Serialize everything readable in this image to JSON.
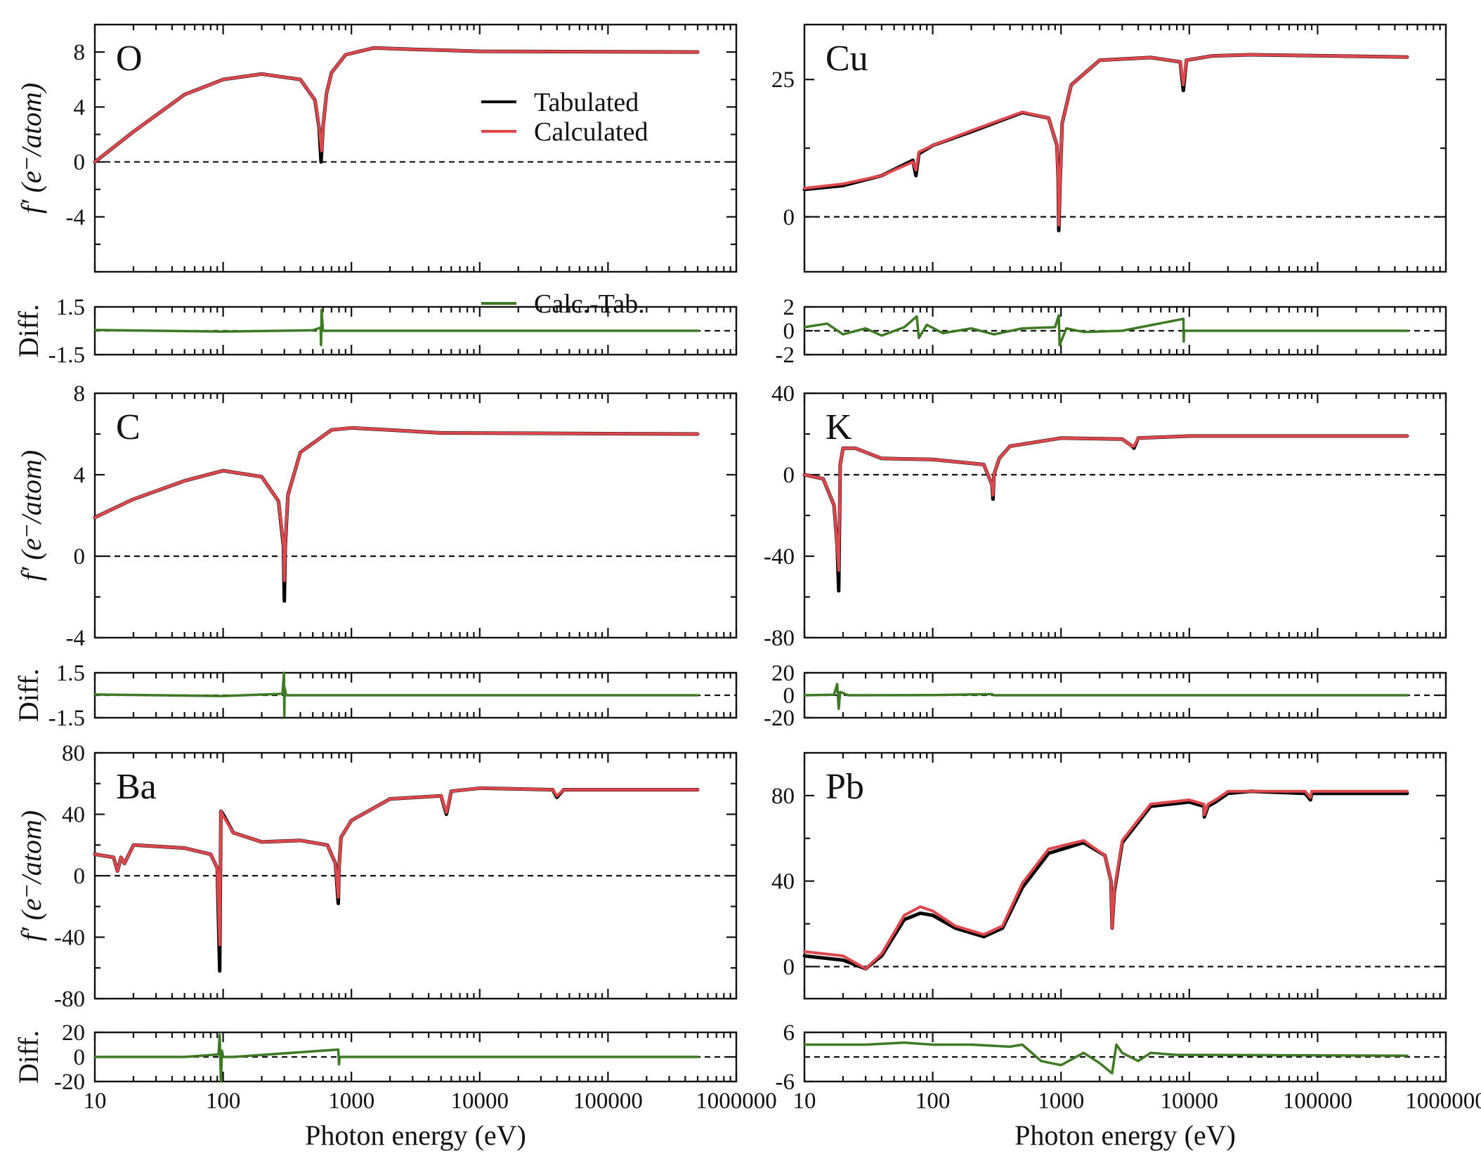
{
  "figure": {
    "x_axis_label": "Photon energy (eV)",
    "x_tick_labels": [
      "10",
      "100",
      "1000",
      "10000",
      "100000",
      "1000000"
    ],
    "y_axis_label_main": "f′ (e⁻/atom)",
    "y_axis_label_diff": "Diff.",
    "legend": {
      "tabulated": "Tabulated",
      "calculated": "Calculated",
      "difference": "Calc.-Tab."
    },
    "colors": {
      "tabulated": "#000000",
      "calculated": "#e0474c",
      "difference": "#3d7a23"
    }
  },
  "chart_data": [
    {
      "type": "line",
      "element": "O",
      "xscale": "log",
      "xlim": [
        10,
        1000000
      ],
      "ylim": [
        -8,
        10
      ],
      "yticks": [
        -4,
        0,
        4,
        8
      ],
      "diff_ylim": [
        -1.5,
        1.5
      ],
      "diff_ticks": [
        -1.5,
        1.5
      ],
      "xlabel": "",
      "ylabel": "f′ (e⁻/atom)",
      "series": [
        {
          "name": "Tabulated",
          "x": [
            10,
            20,
            50,
            100,
            200,
            400,
            520,
            560,
            580,
            600,
            640,
            700,
            900,
            1500,
            3000,
            10000,
            500000
          ],
          "y": [
            0,
            2.2,
            4.9,
            6.0,
            6.4,
            6.0,
            4.5,
            2.5,
            0,
            2.5,
            5.0,
            6.5,
            7.8,
            8.3,
            8.2,
            8.05,
            8.0
          ]
        },
        {
          "name": "Calculated",
          "x": [
            10,
            20,
            50,
            100,
            200,
            400,
            520,
            560,
            585,
            600,
            640,
            700,
            900,
            1500,
            3000,
            10000,
            500000
          ],
          "y": [
            0,
            2.2,
            4.9,
            6.0,
            6.4,
            6.0,
            4.5,
            2.6,
            0.8,
            2.5,
            5.0,
            6.5,
            7.8,
            8.3,
            8.2,
            8.05,
            8.0
          ]
        },
        {
          "name": "Calc.-Tab.",
          "x": [
            10,
            100,
            500,
            575,
            580,
            585,
            600,
            1000,
            10000,
            500000
          ],
          "y": [
            0.05,
            -0.05,
            0.03,
            0.2,
            -0.9,
            1.3,
            0.0,
            0.0,
            0.0,
            0.0
          ]
        }
      ]
    },
    {
      "type": "line",
      "element": "Cu",
      "xscale": "log",
      "xlim": [
        10,
        1000000
      ],
      "ylim": [
        -10,
        35
      ],
      "yticks": [
        0,
        25
      ],
      "diff_ylim": [
        -2,
        2
      ],
      "diff_ticks": [
        -2,
        0,
        2
      ],
      "series": [
        {
          "name": "Tabulated",
          "x": [
            10,
            20,
            40,
            70,
            74,
            78,
            100,
            200,
            500,
            800,
            930,
            950,
            960,
            980,
            1020,
            1200,
            2000,
            5000,
            8500,
            8980,
            9500,
            15000,
            30000,
            500000
          ],
          "y": [
            5,
            5.7,
            7.5,
            10.3,
            7.5,
            11.5,
            13,
            15.5,
            19,
            18,
            13,
            7,
            -2.5,
            5,
            17,
            24,
            28.5,
            29,
            28.2,
            23,
            28.5,
            29.3,
            29.5,
            29.1
          ]
        },
        {
          "name": "Calculated",
          "x": [
            10,
            20,
            40,
            70,
            74,
            78,
            100,
            200,
            500,
            800,
            930,
            950,
            960,
            980,
            1020,
            1200,
            2000,
            5000,
            8500,
            8980,
            9500,
            15000,
            30000,
            500000
          ],
          "y": [
            5.2,
            6,
            7.5,
            10,
            8.5,
            11.8,
            13,
            15.7,
            19.1,
            18,
            13,
            7,
            -1.5,
            5,
            17,
            24,
            28.5,
            29,
            28.2,
            24,
            28.5,
            29.3,
            29.5,
            29.1
          ]
        },
        {
          "name": "Calc.-Tab.",
          "x": [
            10,
            15,
            20,
            30,
            40,
            60,
            75,
            78,
            90,
            120,
            200,
            300,
            500,
            900,
            960,
            975,
            1100,
            1500,
            3000,
            9000,
            9050,
            9100,
            20000,
            500000
          ],
          "y": [
            0.3,
            0.6,
            -0.3,
            0.2,
            -0.4,
            0.3,
            1.2,
            -0.6,
            0.5,
            -0.2,
            0.2,
            -0.3,
            0.2,
            0.3,
            1.3,
            -1.2,
            0.2,
            -0.1,
            0.0,
            1.0,
            -0.9,
            0.0,
            0.0,
            0.0
          ]
        }
      ]
    },
    {
      "type": "line",
      "element": "C",
      "xscale": "log",
      "xlim": [
        10,
        1000000
      ],
      "ylim": [
        -4,
        8
      ],
      "yticks": [
        -4,
        0,
        4,
        8
      ],
      "diff_ylim": [
        -1.5,
        1.5
      ],
      "diff_ticks": [
        -1.5,
        1.5
      ],
      "series": [
        {
          "name": "Tabulated",
          "x": [
            10,
            20,
            50,
            100,
            200,
            270,
            295,
            300,
            305,
            320,
            400,
            700,
            1000,
            2000,
            5000,
            500000
          ],
          "y": [
            1.9,
            2.8,
            3.7,
            4.2,
            3.9,
            2.7,
            0.5,
            -2.2,
            0.5,
            3.0,
            5.1,
            6.2,
            6.3,
            6.2,
            6.05,
            6.0
          ]
        },
        {
          "name": "Calculated",
          "x": [
            10,
            20,
            50,
            100,
            200,
            270,
            295,
            300,
            305,
            320,
            400,
            700,
            1000,
            2000,
            5000,
            500000
          ],
          "y": [
            1.9,
            2.8,
            3.7,
            4.2,
            3.9,
            2.7,
            0.6,
            -1.2,
            0.6,
            3.0,
            5.1,
            6.2,
            6.3,
            6.2,
            6.05,
            6.0
          ]
        },
        {
          "name": "Calc.-Tab.",
          "x": [
            10,
            100,
            290,
            298,
            300,
            302,
            310,
            1000,
            500000
          ],
          "y": [
            0.05,
            -0.05,
            0.1,
            1.5,
            -1.4,
            0.5,
            0.0,
            0.0,
            0.0
          ]
        }
      ]
    },
    {
      "type": "line",
      "element": "K",
      "xscale": "log",
      "xlim": [
        10,
        1000000
      ],
      "ylim": [
        -80,
        40
      ],
      "yticks": [
        -80,
        -40,
        0,
        40
      ],
      "diff_ylim": [
        -20,
        20
      ],
      "diff_ticks": [
        -20,
        0,
        20
      ],
      "series": [
        {
          "name": "Tabulated",
          "x": [
            10,
            14,
            17,
            18,
            18.5,
            19,
            20,
            25,
            40,
            100,
            250,
            290,
            295,
            300,
            330,
            400,
            1000,
            3000,
            3600,
            3700,
            4000,
            10000,
            500000
          ],
          "y": [
            0,
            -2,
            -15,
            -35,
            -57,
            5,
            13,
            13,
            8,
            7.5,
            5,
            -5,
            -12,
            0,
            8,
            14,
            18,
            17.5,
            14,
            13,
            18,
            19,
            19
          ]
        },
        {
          "name": "Calculated",
          "x": [
            10,
            14,
            17,
            18,
            18.5,
            19,
            20,
            25,
            40,
            100,
            250,
            290,
            295,
            300,
            330,
            400,
            1000,
            3000,
            3600,
            3700,
            4000,
            10000,
            500000
          ],
          "y": [
            0,
            -2,
            -15,
            -35,
            -47,
            5,
            13,
            13,
            8,
            7.5,
            5,
            -5,
            -10,
            0,
            8,
            14,
            18,
            17.5,
            14,
            14,
            18,
            19,
            19
          ]
        },
        {
          "name": "Calc.-Tab.",
          "x": [
            10,
            17,
            18,
            18.5,
            19,
            22,
            100,
            290,
            300,
            1000,
            500000
          ],
          "y": [
            0,
            0.5,
            10,
            -12,
            3,
            0,
            0.2,
            1,
            0,
            0,
            0
          ]
        }
      ]
    },
    {
      "type": "line",
      "element": "Ba",
      "xscale": "log",
      "xlim": [
        10,
        1000000
      ],
      "ylim": [
        -80,
        80
      ],
      "yticks": [
        -80,
        -40,
        0,
        40,
        80
      ],
      "diff_ylim": [
        -20,
        20
      ],
      "diff_ticks": [
        -20,
        0,
        20
      ],
      "series": [
        {
          "name": "Tabulated",
          "x": [
            10,
            14,
            15,
            16,
            17,
            20,
            50,
            80,
            90,
            94,
            96,
            100,
            120,
            200,
            400,
            650,
            750,
            790,
            800,
            830,
            1000,
            2000,
            5000,
            5500,
            6000,
            10000,
            37000,
            40000,
            45000,
            500000
          ],
          "y": [
            14,
            12,
            3,
            12,
            8,
            20,
            18,
            14,
            5,
            -62,
            42,
            40,
            28,
            22,
            23,
            20,
            8,
            -18,
            5,
            25,
            36,
            50,
            52,
            40,
            55,
            57,
            56,
            51,
            56,
            56
          ]
        },
        {
          "name": "Calculated",
          "x": [
            10,
            14,
            15,
            16,
            17,
            20,
            50,
            80,
            90,
            94,
            96,
            100,
            120,
            200,
            400,
            650,
            750,
            790,
            800,
            830,
            1000,
            2000,
            5000,
            5500,
            6000,
            10000,
            37000,
            40000,
            45000,
            500000
          ],
          "y": [
            14,
            12,
            3,
            12,
            8,
            20,
            18,
            14,
            5,
            -45,
            42,
            39,
            28,
            22,
            23,
            20,
            8,
            -14,
            5,
            25,
            36,
            50,
            52,
            41,
            55,
            57,
            56,
            52,
            56,
            56
          ]
        },
        {
          "name": "Calc.-Tab.",
          "x": [
            10,
            50,
            92,
            94,
            96,
            98,
            100,
            120,
            790,
            800,
            810,
            1000,
            500000
          ],
          "y": [
            0,
            0,
            2,
            18,
            -20,
            5,
            0,
            0,
            6,
            -6,
            0,
            0,
            0
          ]
        }
      ]
    },
    {
      "type": "line",
      "element": "Pb",
      "xscale": "log",
      "xlim": [
        10,
        1000000
      ],
      "ylim": [
        -15,
        100
      ],
      "yticks": [
        0,
        40,
        80
      ],
      "diff_ylim": [
        -6,
        6
      ],
      "diff_ticks": [
        -6,
        6
      ],
      "series": [
        {
          "name": "Tabulated",
          "x": [
            10,
            20,
            30,
            40,
            60,
            80,
            100,
            150,
            250,
            350,
            500,
            800,
            1500,
            2200,
            2450,
            2500,
            2600,
            3000,
            5000,
            10000,
            13000,
            13100,
            14000,
            16000,
            20000,
            30000,
            80000,
            88000,
            90000,
            100000,
            500000
          ],
          "y": [
            5,
            3,
            -1,
            5,
            22,
            25,
            24,
            18,
            14,
            18,
            37,
            53,
            58,
            52,
            40,
            18,
            35,
            58,
            75,
            77,
            75,
            70,
            75,
            77,
            81,
            82,
            81,
            78,
            81,
            81,
            81
          ]
        },
        {
          "name": "Calculated",
          "x": [
            10,
            20,
            30,
            40,
            60,
            80,
            100,
            150,
            250,
            350,
            500,
            800,
            1500,
            2200,
            2450,
            2500,
            2600,
            3000,
            5000,
            10000,
            13000,
            13100,
            14000,
            16000,
            20000,
            30000,
            80000,
            88000,
            90000,
            100000,
            500000
          ],
          "y": [
            7,
            5,
            -1,
            6,
            24,
            28,
            26,
            19,
            15,
            19,
            39,
            55,
            59,
            52,
            40,
            18,
            36,
            59,
            76,
            78,
            76,
            71,
            76,
            78,
            82,
            82,
            82,
            79,
            82,
            82,
            82
          ]
        },
        {
          "name": "Calc.-Tab.",
          "x": [
            10,
            30,
            60,
            100,
            200,
            400,
            500,
            700,
            1000,
            1500,
            2000,
            2500,
            2700,
            3000,
            4000,
            5000,
            8000,
            15000,
            500000
          ],
          "y": [
            3,
            3,
            3.5,
            3,
            3,
            2.5,
            3,
            -1,
            -2,
            1,
            -1.5,
            -4,
            3,
            1,
            -1,
            1,
            0.5,
            0.5,
            0.3
          ]
        }
      ]
    }
  ]
}
